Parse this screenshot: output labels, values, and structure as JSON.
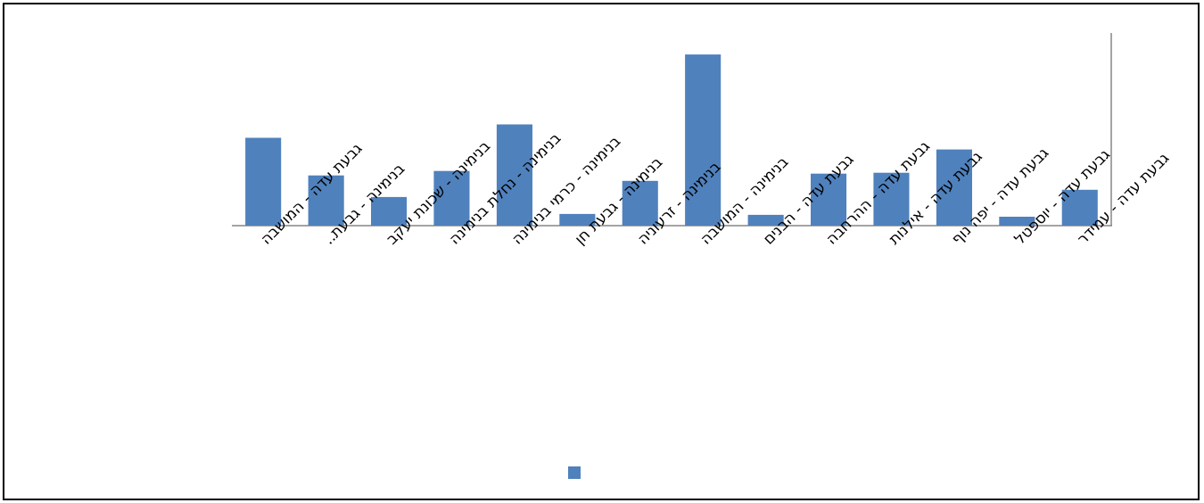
{
  "chart_data": {
    "type": "bar",
    "title": "",
    "xlabel": "",
    "ylabel": "",
    "categories": [
      "גבעת עדה - המושבה",
      "בנימינה - גבעת..",
      "בנימינה - שכונת יעקב",
      "בנימינה - נחלת בנימינה",
      "בנימינה - כרמי בנימינה",
      "בנימינה - גבעת חן",
      "בנימינה - זרעוניה",
      "בנימינה - המושבה",
      "גבעת עדה - הבנים",
      "גבעת עדה - ההרחבה",
      "גבעת עדה - אילנות",
      "גבעת עדה - יפה נוף",
      "גבעת עדה - יוספטל",
      "גבעת עדה - עמידר"
    ],
    "series": [
      {
        "color": "#4F81BD",
        "values": [
          98,
          56,
          32,
          61,
          113,
          13,
          50,
          191,
          12,
          58,
          59,
          85,
          10,
          40
        ]
      }
    ],
    "ylim": [
      0,
      215
    ],
    "grid": false,
    "legend": "bottom"
  },
  "legend": {
    "label": ""
  }
}
